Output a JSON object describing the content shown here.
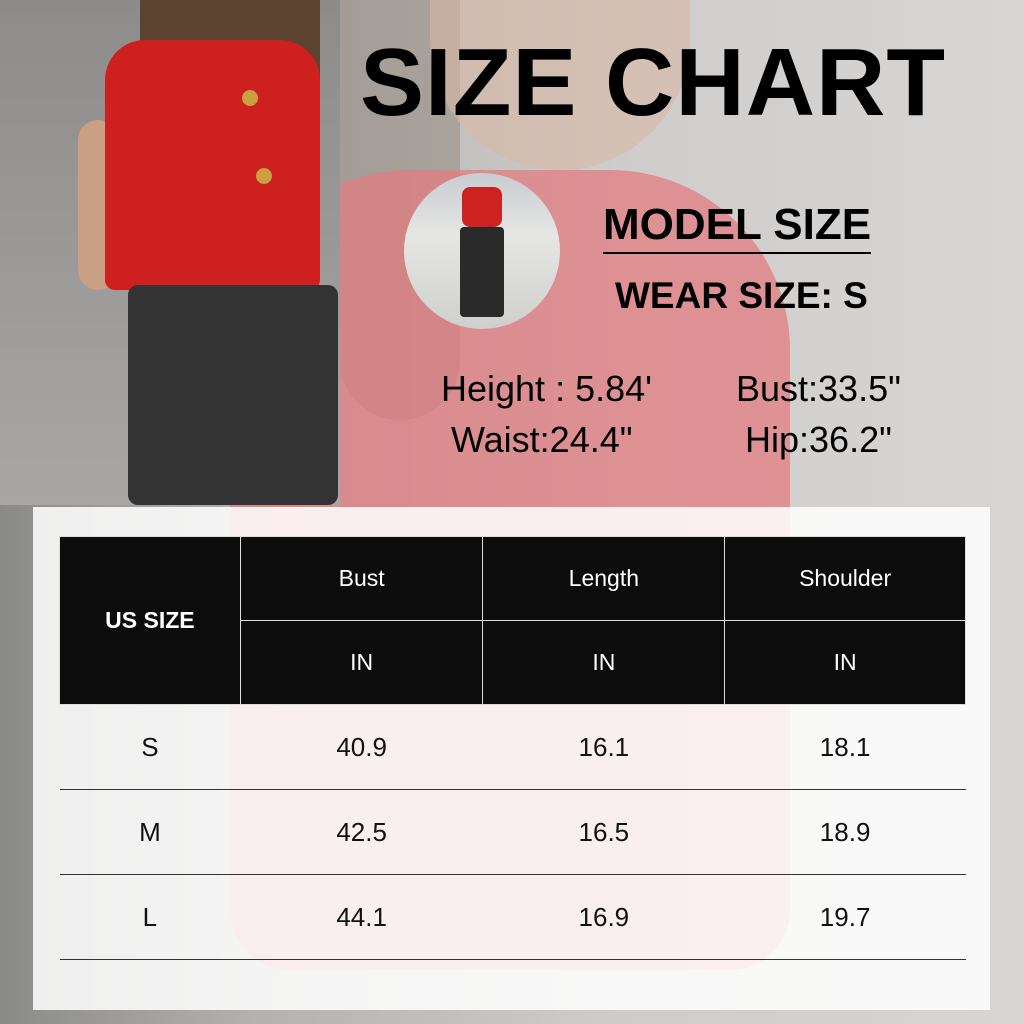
{
  "title": "SIZE CHART",
  "model": {
    "heading": "MODEL SIZE",
    "wear_size": "WEAR SIZE: S",
    "height": "Height :  5.84'",
    "bust": "Bust:33.5\"",
    "waist": "Waist:24.4\"",
    "hip": "Hip:36.2\""
  },
  "table": {
    "size_header": "US SIZE",
    "columns": [
      "Bust",
      "Length",
      "Shoulder"
    ],
    "units": [
      "IN",
      "IN",
      "IN"
    ],
    "rows": [
      {
        "size": "S",
        "values": [
          "40.9",
          "16.1",
          "18.1"
        ]
      },
      {
        "size": "M",
        "values": [
          "42.5",
          "16.5",
          "18.9"
        ]
      },
      {
        "size": "L",
        "values": [
          "44.1",
          "16.9",
          "19.7"
        ]
      }
    ]
  },
  "colors": {
    "header_bg": "#0c0c0c",
    "vest": "#cf2020"
  }
}
